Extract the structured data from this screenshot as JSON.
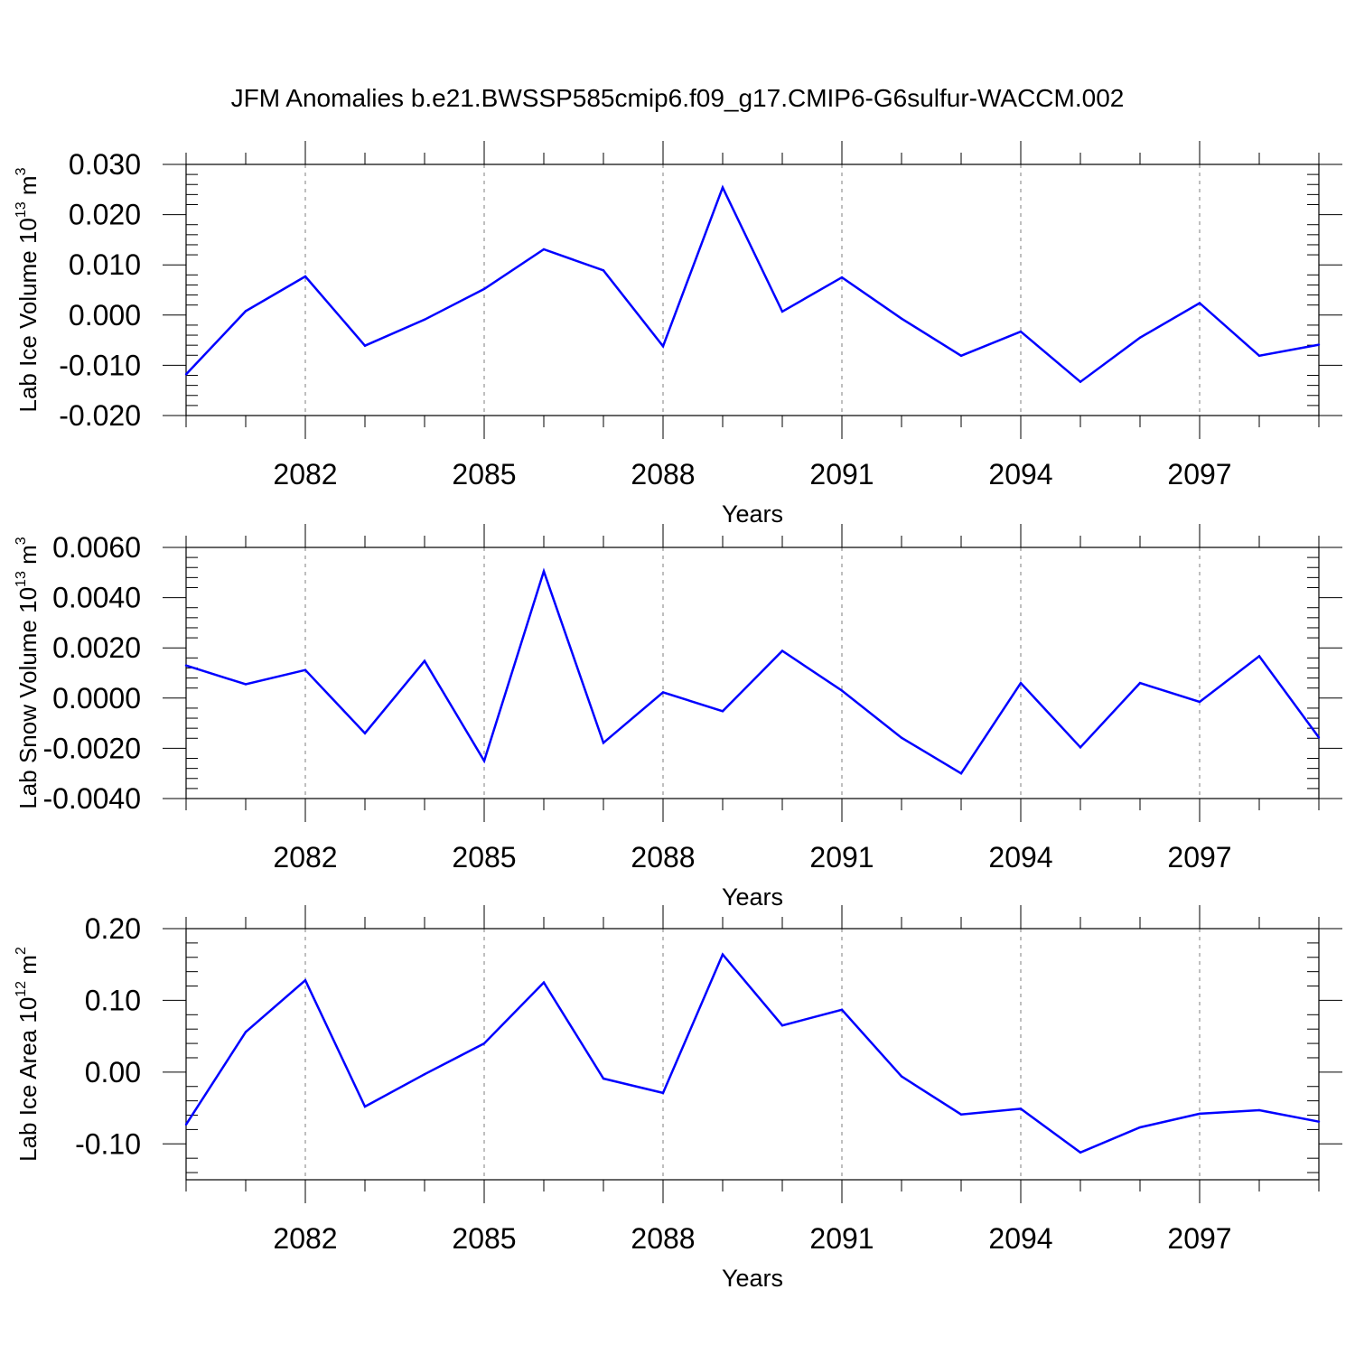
{
  "title": "JFM Anomalies b.e21.BWSSP585cmip6.f09_g17.CMIP6-G6sulfur-WACCM.002",
  "colors": {
    "line": "#0000ff",
    "axis": "#000000",
    "grid": "#7f7f7f"
  },
  "chart_data": [
    {
      "type": "line",
      "ylabel_main": "Lab Ice Volume 10",
      "ylabel_exp": "13",
      "ylabel_unit": " m",
      "ylabel_unit_exp": "3",
      "xlabel": "Years",
      "xlim": [
        2080,
        2099
      ],
      "ylim": [
        -0.02,
        0.03
      ],
      "xticks": [
        2082,
        2085,
        2088,
        2091,
        2094,
        2097
      ],
      "yticks": [
        -0.02,
        -0.01,
        0.0,
        0.01,
        0.02,
        0.03
      ],
      "ytick_labels": [
        "-0.020",
        "-0.010",
        "0.000",
        "0.010",
        "0.020",
        "0.030"
      ],
      "x": [
        2080,
        2081,
        2082,
        2083,
        2084,
        2085,
        2086,
        2087,
        2088,
        2089,
        2090,
        2091,
        2092,
        2093,
        2094,
        2095,
        2096,
        2097,
        2098,
        2099
      ],
      "values": [
        -0.0118,
        0.0008,
        0.0077,
        -0.0061,
        -0.0009,
        0.0052,
        0.0131,
        0.0089,
        -0.0062,
        0.0254,
        0.0007,
        0.0075,
        -0.0007,
        -0.0081,
        -0.0033,
        -0.0133,
        -0.0045,
        0.0024,
        -0.0081,
        -0.0059
      ]
    },
    {
      "type": "line",
      "ylabel_main": "Lab Snow Volume 10",
      "ylabel_exp": "13",
      "ylabel_unit": " m",
      "ylabel_unit_exp": "3",
      "xlabel": "Years",
      "xlim": [
        2080,
        2099
      ],
      "ylim": [
        -0.004,
        0.006
      ],
      "xticks": [
        2082,
        2085,
        2088,
        2091,
        2094,
        2097
      ],
      "yticks": [
        -0.004,
        -0.002,
        0.0,
        0.002,
        0.004,
        0.006
      ],
      "ytick_labels": [
        "-0.0040",
        "-0.0020",
        "0.0000",
        "0.0020",
        "0.0040",
        "0.0060"
      ],
      "x": [
        2080,
        2081,
        2082,
        2083,
        2084,
        2085,
        2086,
        2087,
        2088,
        2089,
        2090,
        2091,
        2092,
        2093,
        2094,
        2095,
        2096,
        2097,
        2098,
        2099
      ],
      "values": [
        0.0013,
        0.00055,
        0.00112,
        -0.0014,
        0.00148,
        -0.0025,
        0.00505,
        -0.00178,
        0.00023,
        -0.00052,
        0.00188,
        0.0003,
        -0.00158,
        -0.003,
        0.0006,
        -0.00196,
        0.0006,
        -0.00015,
        0.00167,
        -0.00157
      ]
    },
    {
      "type": "line",
      "ylabel_main": "Lab Ice Area 10",
      "ylabel_exp": "12",
      "ylabel_unit": " m",
      "ylabel_unit_exp": "2",
      "xlabel": "Years",
      "xlim": [
        2080,
        2099
      ],
      "ylim": [
        -0.15,
        0.2
      ],
      "xticks": [
        2082,
        2085,
        2088,
        2091,
        2094,
        2097
      ],
      "yticks": [
        -0.1,
        0.0,
        0.1,
        0.2
      ],
      "ytick_labels": [
        "-0.10",
        "0.00",
        "0.10",
        "0.20"
      ],
      "x": [
        2080,
        2081,
        2082,
        2083,
        2084,
        2085,
        2086,
        2087,
        2088,
        2089,
        2090,
        2091,
        2092,
        2093,
        2094,
        2095,
        2096,
        2097,
        2098,
        2099
      ],
      "values": [
        -0.073,
        0.056,
        0.128,
        -0.048,
        -0.003,
        0.04,
        0.125,
        -0.009,
        -0.029,
        0.164,
        0.065,
        0.087,
        -0.006,
        -0.059,
        -0.051,
        -0.112,
        -0.077,
        -0.058,
        -0.053,
        -0.069
      ]
    }
  ]
}
